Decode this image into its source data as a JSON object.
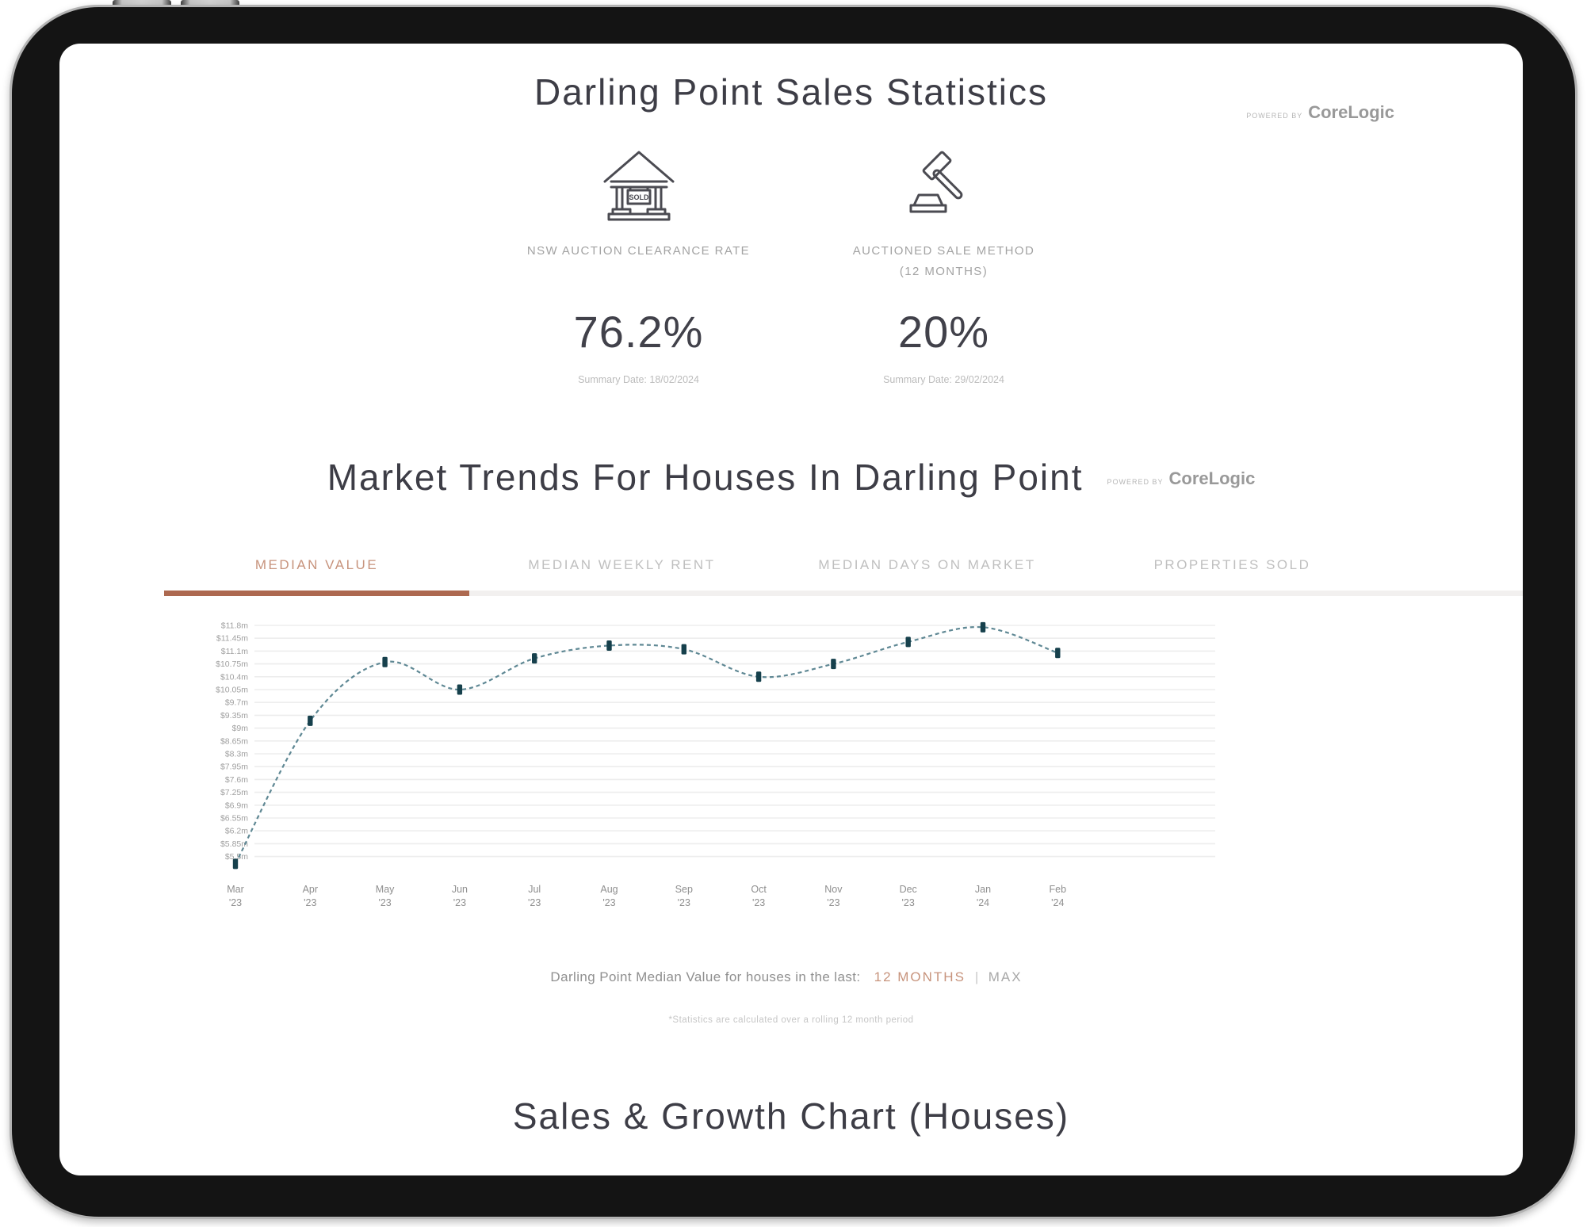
{
  "header": {
    "title": "Darling Point Sales Statistics",
    "powered_by": {
      "prefix": "POWERED BY",
      "brand": "CoreLogic"
    }
  },
  "stats": [
    {
      "icon": "sold-house-icon",
      "icon_text": "SOLD",
      "label_line1": "NSW AUCTION CLEARANCE RATE",
      "label_line2": "",
      "value": "76.2%",
      "summary": "Summary Date: 18/02/2024"
    },
    {
      "icon": "gavel-icon",
      "icon_text": "",
      "label_line1": "AUCTIONED SALE METHOD",
      "label_line2": "(12 MONTHS)",
      "value": "20%",
      "summary": "Summary Date: 29/02/2024"
    }
  ],
  "trends": {
    "title": "Market Trends For Houses In Darling Point",
    "powered_by": {
      "prefix": "POWERED BY",
      "brand": "CoreLogic"
    },
    "tabs": [
      {
        "label": "MEDIAN VALUE",
        "active": true
      },
      {
        "label": "MEDIAN WEEKLY RENT",
        "active": false
      },
      {
        "label": "MEDIAN DAYS ON MARKET",
        "active": false
      },
      {
        "label": "PROPERTIES SOLD",
        "active": false
      }
    ],
    "range": {
      "prefix": "Darling Point Median Value for houses in the last:",
      "separator": "|",
      "options": [
        {
          "label": "12 MONTHS",
          "active": true
        },
        {
          "label": "MAX",
          "active": false
        }
      ]
    },
    "footnote": "*Statistics are calculated over a rolling 12 month period"
  },
  "bottom_title": "Sales & Growth Chart (Houses)",
  "chart_data": {
    "type": "line",
    "title": "Darling Point Median Value for houses",
    "x": [
      "Mar '23",
      "Apr '23",
      "May '23",
      "Jun '23",
      "Jul '23",
      "Aug '23",
      "Sep '23",
      "Oct '23",
      "Nov '23",
      "Dec '23",
      "Jan '24",
      "Feb '24"
    ],
    "x_labels": [
      [
        "Mar",
        "'23"
      ],
      [
        "Apr",
        "'23"
      ],
      [
        "May",
        "'23"
      ],
      [
        "Jun",
        "'23"
      ],
      [
        "Jul",
        "'23"
      ],
      [
        "Aug",
        "'23"
      ],
      [
        "Sep",
        "'23"
      ],
      [
        "Oct",
        "'23"
      ],
      [
        "Nov",
        "'23"
      ],
      [
        "Dec",
        "'23"
      ],
      [
        "Jan",
        "'24"
      ],
      [
        "Feb",
        "'24"
      ]
    ],
    "values": [
      5.3,
      9.2,
      10.8,
      10.05,
      10.9,
      11.25,
      11.15,
      10.4,
      10.75,
      11.35,
      11.75,
      11.05
    ],
    "unit": "$ million",
    "yticks": [
      "$11.8m",
      "$11.45m",
      "$11.1m",
      "$10.75m",
      "$10.4m",
      "$10.05m",
      "$9.7m",
      "$9.35m",
      "$9m",
      "$8.65m",
      "$8.3m",
      "$7.95m",
      "$7.6m",
      "$7.25m",
      "$6.9m",
      "$6.55m",
      "$6.2m",
      "$5.85m",
      "$5.5m"
    ],
    "ylim": [
      5.5,
      11.8
    ],
    "ytick_step": 0.35,
    "grid": true,
    "line_style": "dashed",
    "marker": "square",
    "legend": "none",
    "colors": {
      "line": "#5f8894",
      "marker": "#16404c",
      "grid": "#ededed",
      "tick_text": "#a0a0a0",
      "month_text": "#8f8f8f",
      "accent_bar": "#ad6950",
      "accent_text": "#c7937c"
    }
  }
}
